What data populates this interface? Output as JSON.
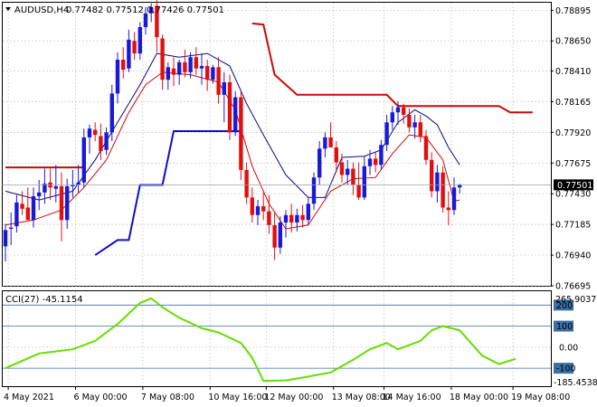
{
  "chart_data": [
    {
      "type": "candlestick",
      "symbol_label": "AUDUSD,H4",
      "ohlc_label": "0.77482 0.77512 0.77426 0.77501",
      "title_icon": "triangle-down-icon",
      "last_price_label": "0.77501",
      "last_price": 0.77501,
      "ylim": [
        0.76695,
        0.78955
      ],
      "y_ticks": [
        0.76695,
        0.7694,
        0.77185,
        0.7743,
        0.77675,
        0.7792,
        0.78165,
        0.7841,
        0.7865,
        0.78895
      ],
      "y_tick_labels": [
        "0.76695",
        "0.76940",
        "0.77185",
        "0.77430",
        "0.77675",
        "0.77920",
        "0.78165",
        "0.78410",
        "0.78650",
        "0.78895"
      ],
      "bull_color": "#1a1ad6",
      "bear_color": "#e01010",
      "candles": [
        [
          0.7701,
          0.7719,
          0.7689,
          0.7714
        ],
        [
          0.7715,
          0.7728,
          0.7702,
          0.7716
        ],
        [
          0.7717,
          0.7742,
          0.7712,
          0.7736
        ],
        [
          0.7735,
          0.7745,
          0.7726,
          0.7731
        ],
        [
          0.7732,
          0.7748,
          0.7723,
          0.7722
        ],
        [
          0.7722,
          0.7748,
          0.7716,
          0.7741
        ],
        [
          0.7741,
          0.7754,
          0.773,
          0.7744
        ],
        [
          0.7744,
          0.7763,
          0.7735,
          0.7751
        ],
        [
          0.7752,
          0.7763,
          0.7738,
          0.7748
        ],
        [
          0.7747,
          0.7766,
          0.7736,
          0.7749
        ],
        [
          0.7749,
          0.776,
          0.7705,
          0.7722
        ],
        [
          0.7722,
          0.7755,
          0.7715,
          0.7749
        ],
        [
          0.7749,
          0.7762,
          0.774,
          0.775
        ],
        [
          0.775,
          0.7766,
          0.7744,
          0.7752
        ],
        [
          0.7752,
          0.7795,
          0.7748,
          0.7788
        ],
        [
          0.7788,
          0.7798,
          0.7775,
          0.7795
        ],
        [
          0.7794,
          0.78,
          0.7785,
          0.779
        ],
        [
          0.7789,
          0.7799,
          0.777,
          0.7777
        ],
        [
          0.7778,
          0.7796,
          0.7774,
          0.7792
        ],
        [
          0.7792,
          0.783,
          0.7785,
          0.7823
        ],
        [
          0.7823,
          0.7856,
          0.7815,
          0.785
        ],
        [
          0.785,
          0.786,
          0.7835,
          0.7842
        ],
        [
          0.7843,
          0.7874,
          0.784,
          0.7866
        ],
        [
          0.7865,
          0.7872,
          0.785,
          0.7855
        ],
        [
          0.7855,
          0.788,
          0.785,
          0.7876
        ],
        [
          0.7876,
          0.7892,
          0.787,
          0.7887
        ],
        [
          0.7887,
          0.7895,
          0.788,
          0.7892
        ],
        [
          0.7893,
          0.7902,
          0.7856,
          0.7868
        ],
        [
          0.7867,
          0.787,
          0.7826,
          0.7834
        ],
        [
          0.7834,
          0.7848,
          0.7826,
          0.7844
        ],
        [
          0.7843,
          0.7852,
          0.7829,
          0.7838
        ],
        [
          0.7838,
          0.785,
          0.783,
          0.7848
        ],
        [
          0.7848,
          0.7858,
          0.7836,
          0.784
        ],
        [
          0.784,
          0.7856,
          0.7835,
          0.7852
        ],
        [
          0.7852,
          0.786,
          0.7838,
          0.7843
        ],
        [
          0.7843,
          0.7855,
          0.783,
          0.7845
        ],
        [
          0.7845,
          0.785,
          0.7825,
          0.7834
        ],
        [
          0.7834,
          0.7846,
          0.7831,
          0.7844
        ],
        [
          0.7844,
          0.7852,
          0.7815,
          0.7822
        ],
        [
          0.7822,
          0.784,
          0.78,
          0.7832
        ],
        [
          0.7832,
          0.7838,
          0.7786,
          0.7792
        ],
        [
          0.7792,
          0.7825,
          0.7789,
          0.782
        ],
        [
          0.782,
          0.7826,
          0.7754,
          0.7762
        ],
        [
          0.7762,
          0.7768,
          0.7735,
          0.774
        ],
        [
          0.774,
          0.7748,
          0.772,
          0.7726
        ],
        [
          0.7726,
          0.7738,
          0.7718,
          0.7733
        ],
        [
          0.7733,
          0.7744,
          0.7722,
          0.7729
        ],
        [
          0.7729,
          0.7742,
          0.7711,
          0.7718
        ],
        [
          0.7718,
          0.7728,
          0.769,
          0.77
        ],
        [
          0.77,
          0.7725,
          0.7695,
          0.772
        ],
        [
          0.772,
          0.773,
          0.7708,
          0.7726
        ],
        [
          0.7726,
          0.7735,
          0.7712,
          0.772
        ],
        [
          0.772,
          0.7731,
          0.7713,
          0.7726
        ],
        [
          0.7726,
          0.7734,
          0.7716,
          0.7722
        ],
        [
          0.7722,
          0.774,
          0.7718,
          0.7735
        ],
        [
          0.7735,
          0.776,
          0.773,
          0.7756
        ],
        [
          0.7756,
          0.7785,
          0.775,
          0.7779
        ],
        [
          0.7779,
          0.7792,
          0.7772,
          0.7788
        ],
        [
          0.7788,
          0.78,
          0.778,
          0.778
        ],
        [
          0.778,
          0.7785,
          0.776,
          0.7768
        ],
        [
          0.7768,
          0.7775,
          0.7752,
          0.7758
        ],
        [
          0.7758,
          0.777,
          0.775,
          0.7763
        ],
        [
          0.7763,
          0.7768,
          0.7742,
          0.775
        ],
        [
          0.775,
          0.7768,
          0.7738,
          0.774
        ],
        [
          0.774,
          0.7773,
          0.7738,
          0.7765
        ],
        [
          0.7765,
          0.7778,
          0.7758,
          0.7771
        ],
        [
          0.7771,
          0.7776,
          0.776,
          0.7766
        ],
        [
          0.7766,
          0.7786,
          0.7762,
          0.7782
        ],
        [
          0.7782,
          0.7806,
          0.7777,
          0.78
        ],
        [
          0.78,
          0.7813,
          0.7794,
          0.7808
        ],
        [
          0.7808,
          0.7817,
          0.7798,
          0.7812
        ],
        [
          0.7812,
          0.7815,
          0.7799,
          0.7806
        ],
        [
          0.7806,
          0.7811,
          0.7792,
          0.7796
        ],
        [
          0.7796,
          0.7806,
          0.7787,
          0.78
        ],
        [
          0.78,
          0.7806,
          0.7784,
          0.7789
        ],
        [
          0.7789,
          0.7794,
          0.7766,
          0.777
        ],
        [
          0.777,
          0.7776,
          0.774,
          0.7745
        ],
        [
          0.7745,
          0.7766,
          0.7736,
          0.776
        ],
        [
          0.776,
          0.7765,
          0.7728,
          0.7732
        ],
        [
          0.7732,
          0.7745,
          0.7718,
          0.773
        ],
        [
          0.773,
          0.7756,
          0.7726,
          0.7748
        ],
        [
          0.7748,
          0.7751,
          0.7743,
          0.775
        ]
      ],
      "overlays": [
        {
          "color": "#0a0a8a",
          "width": 1,
          "points": [
            [
              0,
              0.7745
            ],
            [
              6,
              0.7738
            ],
            [
              12,
              0.7745
            ],
            [
              16,
              0.777
            ],
            [
              20,
              0.78
            ],
            [
              24,
              0.783
            ],
            [
              27,
              0.7855
            ],
            [
              31,
              0.7852
            ],
            [
              36,
              0.7855
            ],
            [
              40,
              0.7845
            ],
            [
              43,
              0.7815
            ],
            [
              46,
              0.779
            ],
            [
              50,
              0.7758
            ],
            [
              54,
              0.774
            ],
            [
              57,
              0.774
            ],
            [
              60,
              0.7772
            ],
            [
              64,
              0.7773
            ],
            [
              67,
              0.7778
            ],
            [
              70,
              0.78
            ],
            [
              73,
              0.781
            ],
            [
              75,
              0.7805
            ],
            [
              77,
              0.7798
            ],
            [
              79,
              0.778
            ],
            [
              81,
              0.7766
            ]
          ]
        },
        {
          "color": "#cc0808",
          "width": 1,
          "points": [
            [
              0,
              0.7718
            ],
            [
              5,
              0.7722
            ],
            [
              10,
              0.773
            ],
            [
              14,
              0.7748
            ],
            [
              18,
              0.777
            ],
            [
              22,
              0.7808
            ],
            [
              25,
              0.783
            ],
            [
              28,
              0.784
            ],
            [
              33,
              0.7838
            ],
            [
              38,
              0.7832
            ],
            [
              41,
              0.781
            ],
            [
              44,
              0.7765
            ],
            [
              47,
              0.7735
            ],
            [
              50,
              0.7715
            ],
            [
              54,
              0.7718
            ],
            [
              58,
              0.7745
            ],
            [
              62,
              0.7755
            ],
            [
              66,
              0.7756
            ],
            [
              69,
              0.7775
            ],
            [
              72,
              0.779
            ],
            [
              75,
              0.7788
            ],
            [
              78,
              0.777
            ],
            [
              80,
              0.7737
            ],
            [
              81,
              0.7738
            ]
          ]
        },
        {
          "color": "#cc0808",
          "width": 2,
          "points": [
            [
              0,
              0.7764
            ],
            [
              14,
              0.7764
            ]
          ]
        },
        {
          "color": "#cc0808",
          "width": 2,
          "points": [
            [
              44,
              0.7879
            ],
            [
              46,
              0.7878
            ],
            [
              48,
              0.7838
            ],
            [
              52,
              0.7822
            ],
            [
              68,
              0.7822
            ],
            [
              70,
              0.7813
            ],
            [
              88,
              0.7813
            ],
            [
              90,
              0.7808
            ],
            [
              94,
              0.7808
            ]
          ]
        },
        {
          "color": "#1010c8",
          "width": 2,
          "points": [
            [
              16,
              0.7694
            ],
            [
              20,
              0.7706
            ],
            [
              22,
              0.7706
            ],
            [
              24,
              0.775
            ],
            [
              28,
              0.775
            ],
            [
              30,
              0.7793
            ],
            [
              42,
              0.7793
            ]
          ]
        }
      ],
      "x_tick_labels": [
        "4 May 2021",
        "6 May 00:00",
        "7 May 08:00",
        "10 May 16:00",
        "12 May 00:00",
        "13 May 08:00",
        "14 May 16:00",
        "18 May 00:00",
        "19 May 08:00"
      ],
      "x_tick_bars": [
        0.5,
        12.5,
        24.5,
        36.5,
        46.5,
        58.5,
        67.5,
        79.5,
        90.5
      ]
    },
    {
      "type": "line",
      "indicator_label": "CCI(27) -45.1154",
      "ylim": [
        -185.4538,
        265.9037
      ],
      "top_label": "265.9037",
      "bottom_label": "-185.4538",
      "levels": [
        200,
        100,
        0,
        -100
      ],
      "level_labels": [
        "200",
        "100",
        "0.00",
        "-100"
      ],
      "line_color": "#66dd00",
      "values": [
        [
          0,
          -100
        ],
        [
          6,
          -30
        ],
        [
          12,
          -10
        ],
        [
          16,
          30
        ],
        [
          20,
          110
        ],
        [
          24,
          210
        ],
        [
          26,
          232
        ],
        [
          28,
          190
        ],
        [
          31,
          140
        ],
        [
          35,
          90
        ],
        [
          38,
          70
        ],
        [
          42,
          20
        ],
        [
          44,
          -50
        ],
        [
          46,
          -160
        ],
        [
          50,
          -158
        ],
        [
          54,
          -140
        ],
        [
          58,
          -120
        ],
        [
          62,
          -60
        ],
        [
          65,
          -10
        ],
        [
          68,
          20
        ],
        [
          70,
          -10
        ],
        [
          74,
          30
        ],
        [
          76,
          80
        ],
        [
          78,
          100
        ],
        [
          81,
          80
        ],
        [
          85,
          -40
        ],
        [
          88,
          -80
        ],
        [
          91,
          -55
        ]
      ]
    }
  ]
}
